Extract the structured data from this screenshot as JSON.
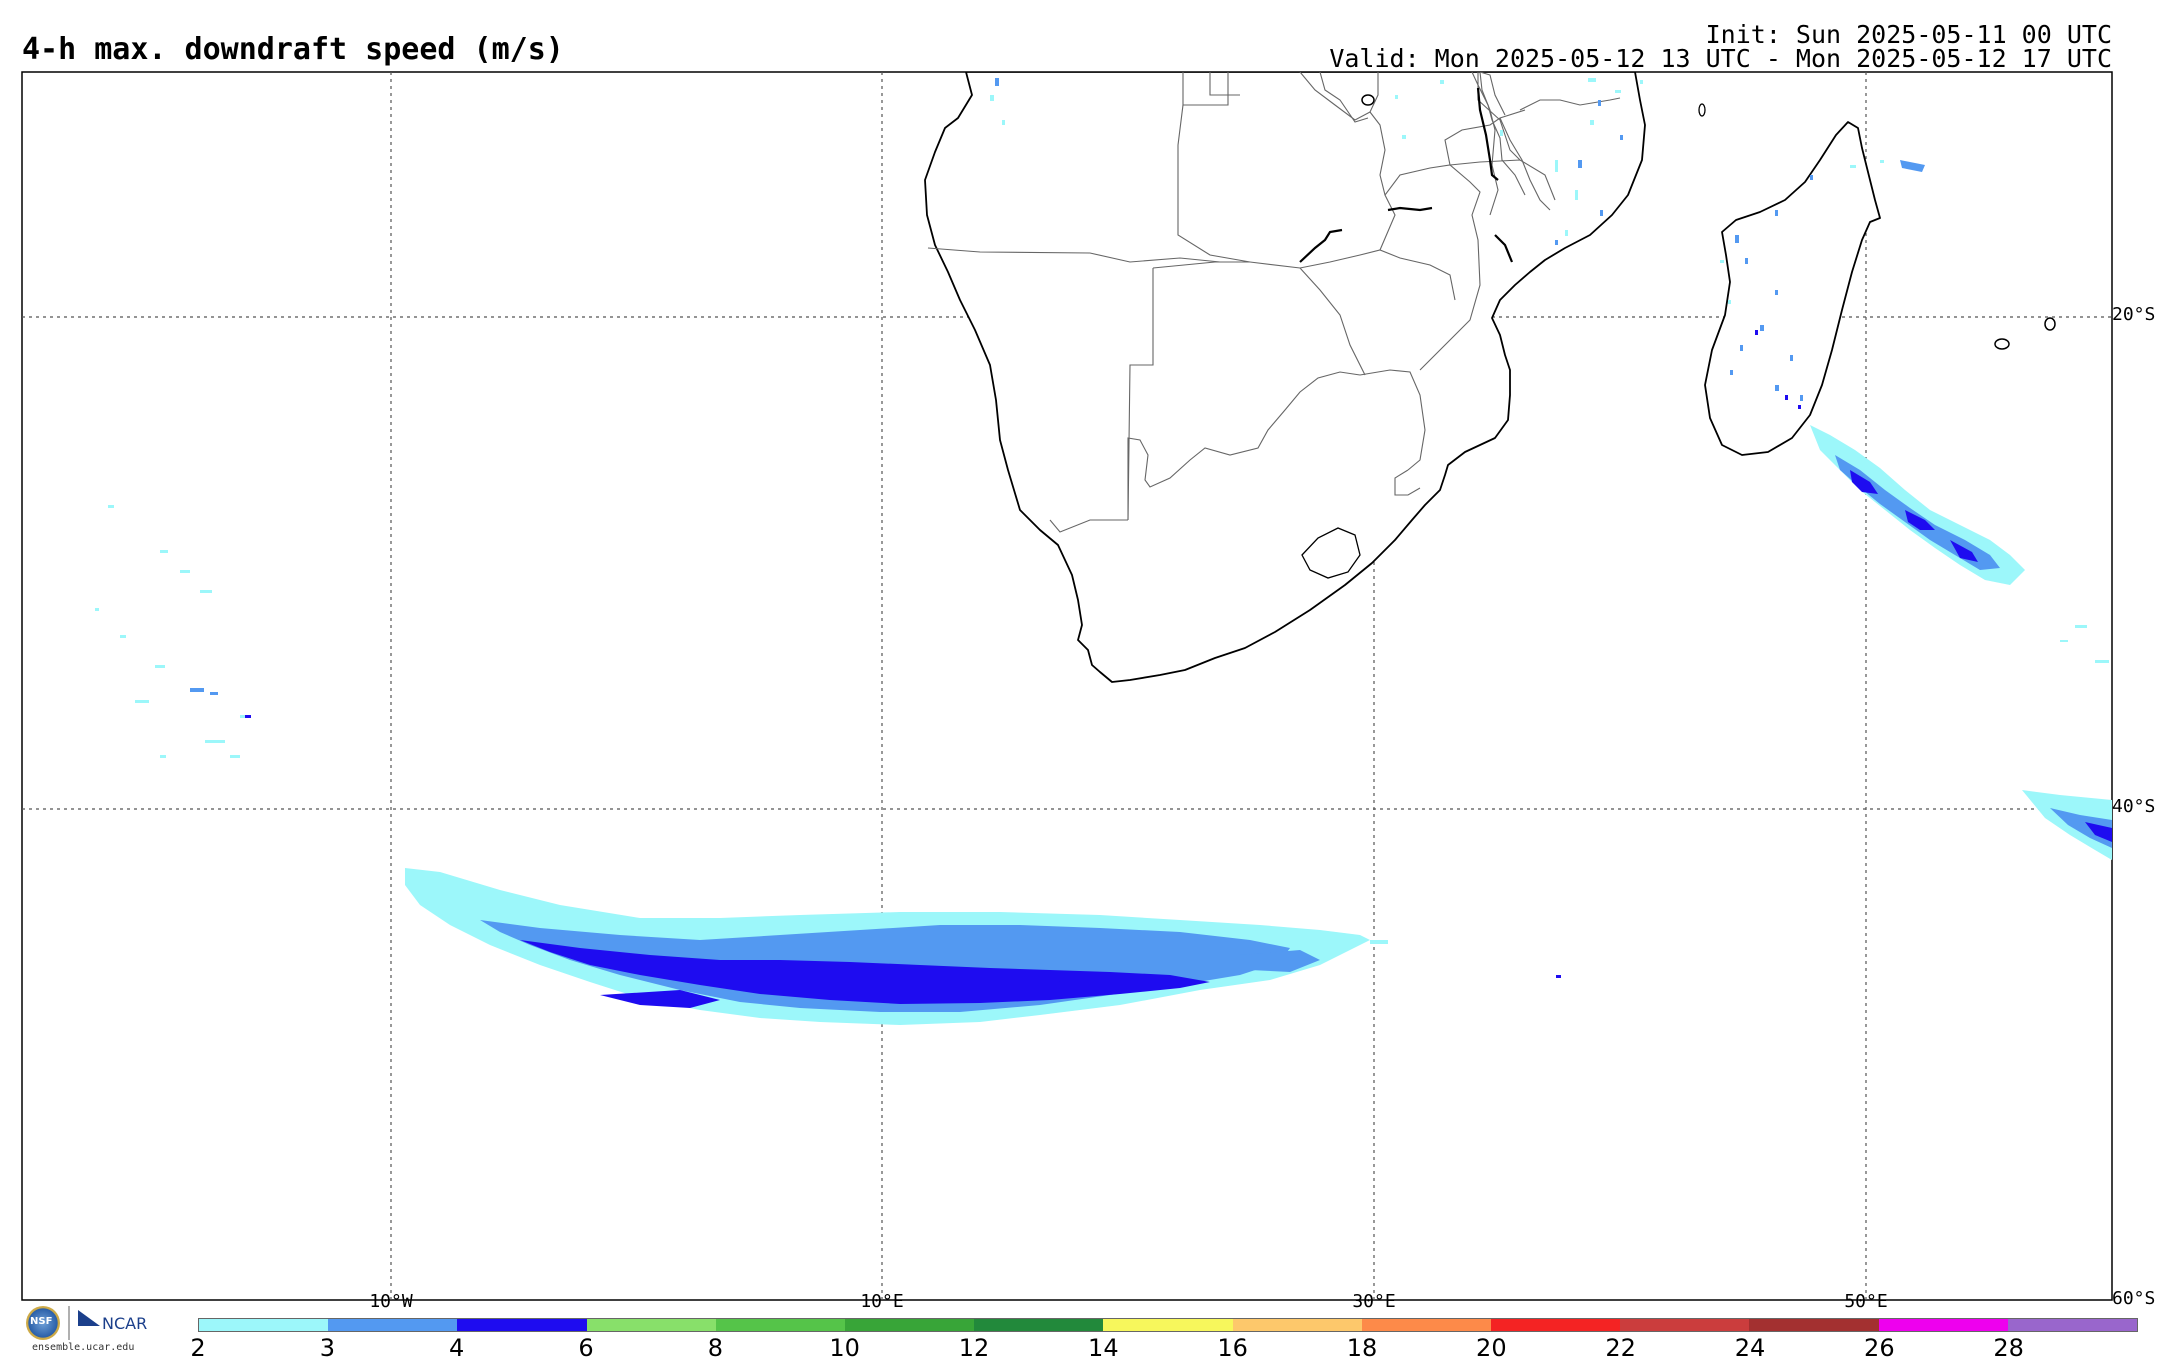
{
  "header": {
    "title": "4-h max. downdraft speed (m/s)",
    "init": "Init: Sun 2025-05-11 00 UTC",
    "valid": "Valid: Mon 2025-05-12 13 UTC - Mon 2025-05-12 17 UTC"
  },
  "map": {
    "lat_labels": [
      "20°S",
      "40°S",
      "60°S"
    ],
    "lon_labels": [
      "10°W",
      "10°E",
      "30°E",
      "50°E"
    ],
    "land_color": "#ffffff",
    "border_color": "#000000"
  },
  "colorbar": {
    "colors": [
      "#9cf7fa",
      "#5399f1",
      "#1e0cf0",
      "#88e06a",
      "#55c449",
      "#38a538",
      "#22893b",
      "#f7f75c",
      "#fdc86b",
      "#fd8a49",
      "#f42323",
      "#cb3d3d",
      "#a33030",
      "#ee00ee",
      "#9966cc"
    ],
    "ticks": [
      "2",
      "3",
      "4",
      "6",
      "8",
      "10",
      "12",
      "14",
      "16",
      "18",
      "20",
      "22",
      "24",
      "26",
      "28"
    ]
  },
  "credits": {
    "org": "NCAR",
    "nsf": "NSF",
    "site": "ensemble.ucar.edu"
  }
}
